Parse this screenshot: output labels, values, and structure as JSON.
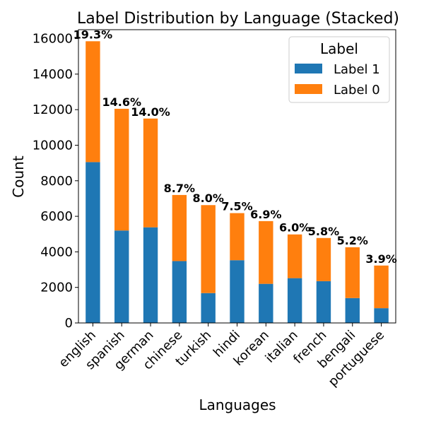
{
  "chart_data": {
    "type": "bar",
    "stacked": true,
    "title": "Label Distribution by Language (Stacked)",
    "xlabel": "Languages",
    "ylabel": "Count",
    "ylim": [
      0,
      16500
    ],
    "yticks": [
      0,
      2000,
      4000,
      6000,
      8000,
      10000,
      12000,
      14000,
      16000
    ],
    "ytick_labels": [
      "0",
      "2000",
      "4000",
      "6000",
      "8000",
      "10000",
      "12000",
      "14000",
      "16000"
    ],
    "grid": false,
    "categories": [
      "english",
      "spanish",
      "german",
      "chinese",
      "turkish",
      "hindi",
      "korean",
      "italian",
      "french",
      "bengali",
      "portuguese"
    ],
    "series": [
      {
        "name": "Label 1",
        "color": "#1f77b4",
        "values": [
          9050,
          5200,
          5380,
          3480,
          1680,
          3530,
          2200,
          2520,
          2350,
          1400,
          830
        ]
      },
      {
        "name": "Label 0",
        "color": "#ff7f0e",
        "values": [
          6800,
          6850,
          6120,
          3720,
          4950,
          2650,
          3530,
          2460,
          2430,
          2860,
          2400
        ]
      }
    ],
    "bar_labels": [
      "19.3%",
      "14.6%",
      "14.0%",
      "8.7%",
      "8.0%",
      "7.5%",
      "6.9%",
      "6.0%",
      "5.8%",
      "5.2%",
      "3.9%"
    ],
    "legend": {
      "title": "Label",
      "position": "top-right",
      "entries": [
        "Label 1",
        "Label 0"
      ]
    }
  }
}
